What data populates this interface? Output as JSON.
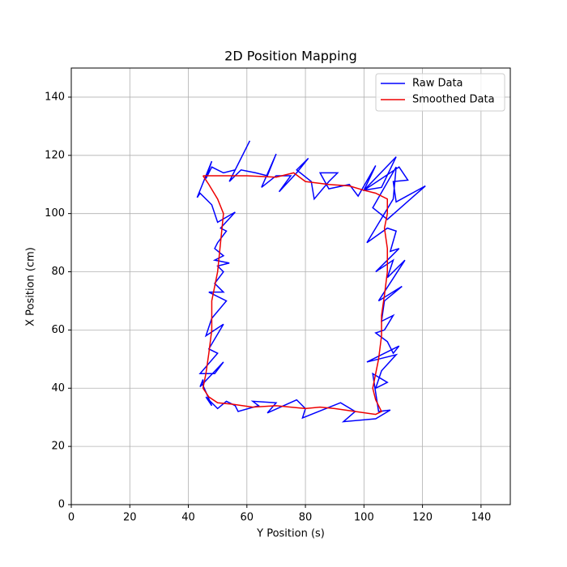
{
  "chart_data": {
    "type": "line",
    "title": "2D Position Mapping",
    "x_label": "Y Position  (s)",
    "y_label": "X Position (cm)",
    "xlim": [
      0,
      150
    ],
    "ylim": [
      0,
      150
    ],
    "xticks": [
      0,
      20,
      40,
      60,
      80,
      100,
      120,
      140
    ],
    "yticks": [
      0,
      20,
      40,
      60,
      80,
      100,
      120,
      140
    ],
    "grid": true,
    "legend": "upper right",
    "series": [
      {
        "name": "Raw Data",
        "color": "#0000ff",
        "x": [
          43,
          48,
          46,
          48,
          50,
          52,
          56,
          61,
          54,
          58,
          63,
          67,
          70,
          65,
          70,
          75,
          71,
          77,
          81,
          77,
          82,
          83,
          88,
          91,
          85,
          88,
          95,
          98,
          104,
          100,
          106,
          111,
          100,
          112,
          115,
          110,
          111,
          121,
          108,
          103,
          111,
          110,
          101,
          108,
          111,
          109,
          112,
          104,
          110,
          108,
          114,
          105,
          113,
          107,
          106,
          110,
          107,
          104,
          108,
          110,
          112,
          101,
          111,
          106,
          104,
          108,
          103,
          105,
          109,
          104,
          93,
          97,
          92,
          79,
          80,
          77,
          67,
          70,
          62,
          64,
          57,
          56,
          53,
          50,
          48,
          46,
          48,
          45,
          45,
          44,
          52,
          49,
          44,
          50,
          47,
          52,
          46,
          48,
          53,
          47,
          52,
          49,
          52,
          50,
          54,
          49,
          52,
          49,
          50,
          53,
          51,
          56,
          50,
          48,
          44,
          43
        ],
        "y": [
          105.5,
          118,
          112,
          116,
          115,
          114,
          115,
          125,
          111,
          115,
          114,
          113,
          120.5,
          109,
          113,
          113,
          107.5,
          114,
          119,
          115,
          111,
          105,
          111,
          114,
          114,
          108.5,
          110,
          106,
          116.5,
          108,
          109,
          119.5,
          108,
          116,
          111.5,
          111,
          104,
          109.5,
          98,
          102,
          116,
          105,
          90,
          95,
          94,
          87,
          88,
          80,
          84,
          78,
          84,
          70,
          75,
          70,
          63,
          65,
          60,
          59,
          56,
          52,
          54.5,
          49,
          51.5,
          46,
          40,
          42,
          45,
          32,
          32.5,
          29.5,
          28.5,
          32,
          35,
          29.8,
          33,
          36,
          31.5,
          35,
          35.5,
          34,
          32,
          34,
          35.5,
          33,
          35,
          37,
          34,
          41,
          43,
          40.5,
          49,
          45,
          45,
          52,
          53.5,
          62,
          58,
          64,
          70,
          73,
          73,
          76,
          80,
          82,
          83,
          84,
          85.5,
          88,
          90,
          94,
          95,
          100.5,
          97,
          103,
          107,
          105.5
        ]
      },
      {
        "name": "Smoothed Data",
        "color": "#ee0000",
        "x": [
          45,
          50,
          60,
          70,
          76,
          80,
          88,
          95,
          100,
          104,
          108,
          108,
          107,
          108,
          108,
          107,
          106,
          106,
          105,
          104,
          103,
          104,
          106,
          104,
          97,
          90,
          85,
          80,
          75,
          70,
          62,
          55,
          50,
          47,
          45,
          46,
          47,
          48,
          48,
          50,
          51,
          52,
          50,
          47,
          45
        ],
        "y": [
          113,
          113,
          113,
          112.5,
          114,
          111,
          110,
          109.5,
          108,
          107,
          105,
          100,
          95,
          88,
          80,
          72,
          65,
          58,
          50,
          45,
          40,
          36,
          32,
          31,
          32,
          33,
          33.5,
          33,
          33.5,
          34,
          33.5,
          34.5,
          35,
          37,
          40,
          45,
          52,
          60,
          70,
          80,
          90,
          100,
          105,
          110,
          113
        ]
      }
    ]
  }
}
